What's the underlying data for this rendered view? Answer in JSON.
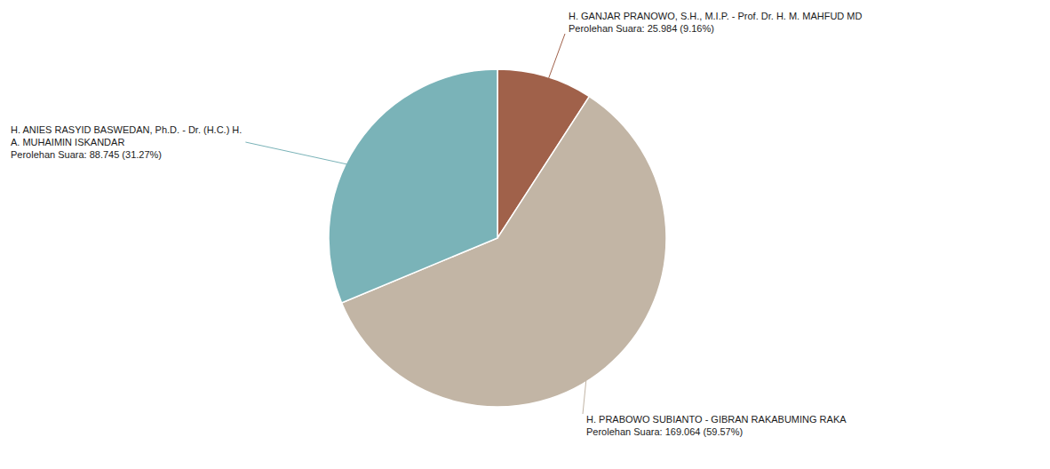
{
  "chart_data": {
    "type": "pie",
    "categories": [
      "H. GANJAR PRANOWO, S.H., M.I.P. - Prof. Dr. H. M. MAHFUD MD",
      "H. PRABOWO SUBIANTO - GIBRAN RAKABUMING RAKA",
      "H. ANIES RASYID BASWEDAN, Ph.D. - Dr. (H.C.) H.\nA. MUHAIMIN ISKANDAR"
    ],
    "values": [
      25984,
      169064,
      88745
    ],
    "value_labels": [
      "Perolehan Suara: 25.984 (9.16%)",
      "Perolehan Suara: 169.064 (59.57%)",
      "Perolehan Suara: 88.745 (31.27%)"
    ],
    "colors": [
      "#a0614a",
      "#c2b5a5",
      "#7ab3b8"
    ],
    "data_labels": true
  }
}
